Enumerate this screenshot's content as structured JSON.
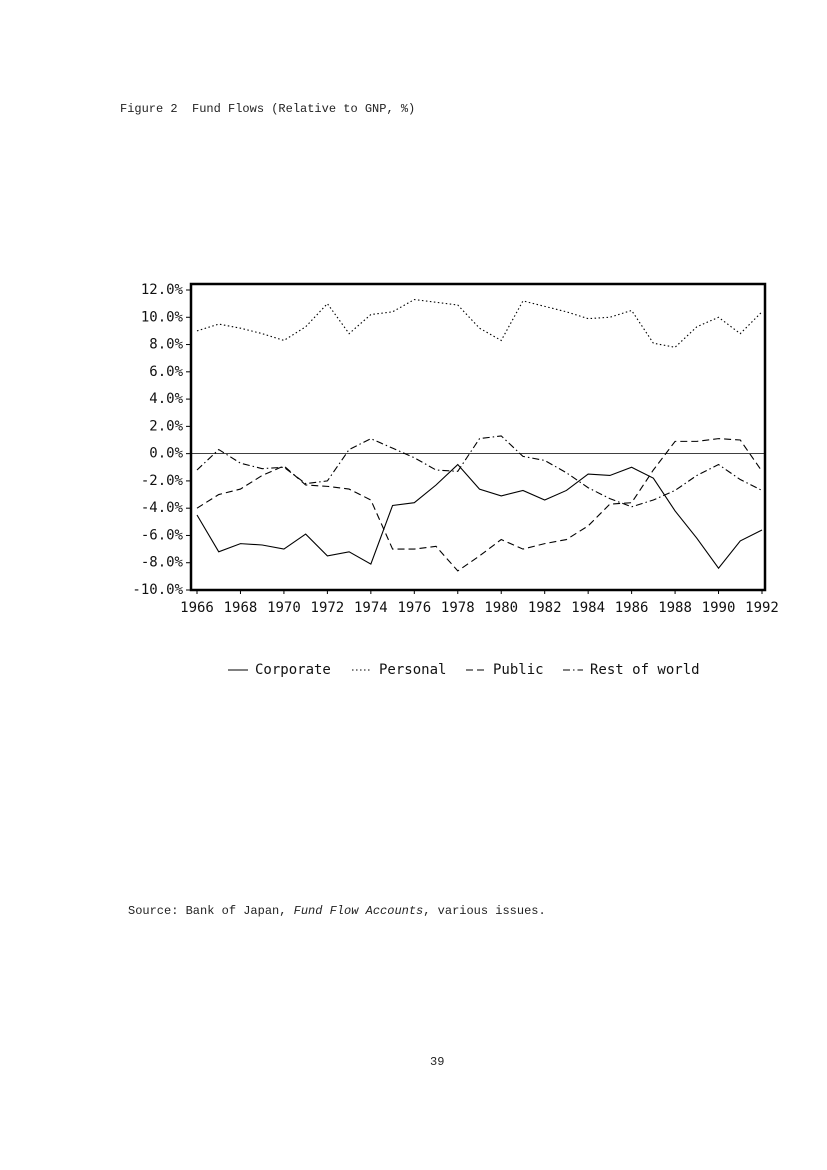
{
  "caption": "Figure 2  Fund Flows (Relative to GNP, %)",
  "chart_data": {
    "type": "line",
    "x": [
      1966,
      1967,
      1968,
      1969,
      1970,
      1971,
      1972,
      1973,
      1974,
      1975,
      1976,
      1977,
      1978,
      1979,
      1980,
      1981,
      1982,
      1983,
      1984,
      1985,
      1986,
      1987,
      1988,
      1989,
      1990,
      1991,
      1992
    ],
    "xlim": [
      1966,
      1992
    ],
    "xticks": [
      1966,
      1968,
      1970,
      1972,
      1974,
      1976,
      1978,
      1980,
      1982,
      1984,
      1986,
      1988,
      1990,
      1992
    ],
    "ylim": [
      -10,
      12
    ],
    "yticks": [
      {
        "value": 12,
        "label": "12.0%"
      },
      {
        "value": 10,
        "label": "10.0%"
      },
      {
        "value": 8,
        "label": "8.0%"
      },
      {
        "value": 6,
        "label": "6.0%"
      },
      {
        "value": 4,
        "label": "4.0%"
      },
      {
        "value": 2,
        "label": "2.0%"
      },
      {
        "value": 0,
        "label": "0.0%"
      },
      {
        "value": -2,
        "label": "-2.0%"
      },
      {
        "value": -4,
        "label": "-4.0%"
      },
      {
        "value": -6,
        "label": "-6.0%"
      },
      {
        "value": -8,
        "label": "-8.0%"
      },
      {
        "value": -10,
        "label": "-10.0%"
      }
    ],
    "reference_line": 0,
    "legend": "bottom",
    "series": [
      {
        "name": "Corporate",
        "color": "#000000",
        "dash": "solid",
        "values": [
          -4.5,
          -7.2,
          -6.6,
          -6.7,
          -7.0,
          -5.9,
          -7.5,
          -7.2,
          -8.1,
          -3.8,
          -3.6,
          -2.3,
          -0.8,
          -2.6,
          -3.1,
          -2.7,
          -3.4,
          -2.7,
          -1.5,
          -1.6,
          -1.0,
          -1.8,
          -4.2,
          -6.2,
          -8.4,
          -6.4,
          -5.6
        ]
      },
      {
        "name": "Personal",
        "color": "#000000",
        "dash": "dotted",
        "values": [
          9.0,
          9.5,
          9.2,
          8.8,
          8.3,
          9.3,
          11.0,
          8.8,
          10.2,
          10.4,
          11.3,
          11.1,
          10.9,
          9.2,
          8.3,
          11.2,
          10.8,
          10.4,
          9.9,
          10.0,
          10.5,
          8.1,
          7.8,
          9.3,
          10.0,
          8.8,
          10.4
        ]
      },
      {
        "name": "Public",
        "color": "#000000",
        "dash": "dashed",
        "values": [
          -4.0,
          -3.0,
          -2.6,
          -1.6,
          -0.9,
          -2.3,
          -2.4,
          -2.6,
          -3.4,
          -7.0,
          -7.0,
          -6.8,
          -8.6,
          -7.5,
          -6.3,
          -7.0,
          -6.6,
          -6.3,
          -5.3,
          -3.7,
          -3.6,
          -1.2,
          0.9,
          0.9,
          1.1,
          1.0,
          -1.3
        ]
      },
      {
        "name": "Rest of world",
        "color": "#000000",
        "dash": "dash-dot",
        "values": [
          -1.2,
          0.3,
          -0.7,
          -1.1,
          -1.0,
          -2.2,
          -2.0,
          0.3,
          1.1,
          0.4,
          -0.3,
          -1.2,
          -1.3,
          1.1,
          1.3,
          -0.2,
          -0.5,
          -1.4,
          -2.5,
          -3.3,
          -3.9,
          -3.4,
          -2.7,
          -1.6,
          -0.8,
          -1.9,
          -2.7
        ]
      }
    ]
  },
  "source": {
    "prefix": "Source: Bank of Japan, ",
    "title": "Fund Flow Accounts",
    "suffix": ", various issues."
  },
  "page_number": "39"
}
